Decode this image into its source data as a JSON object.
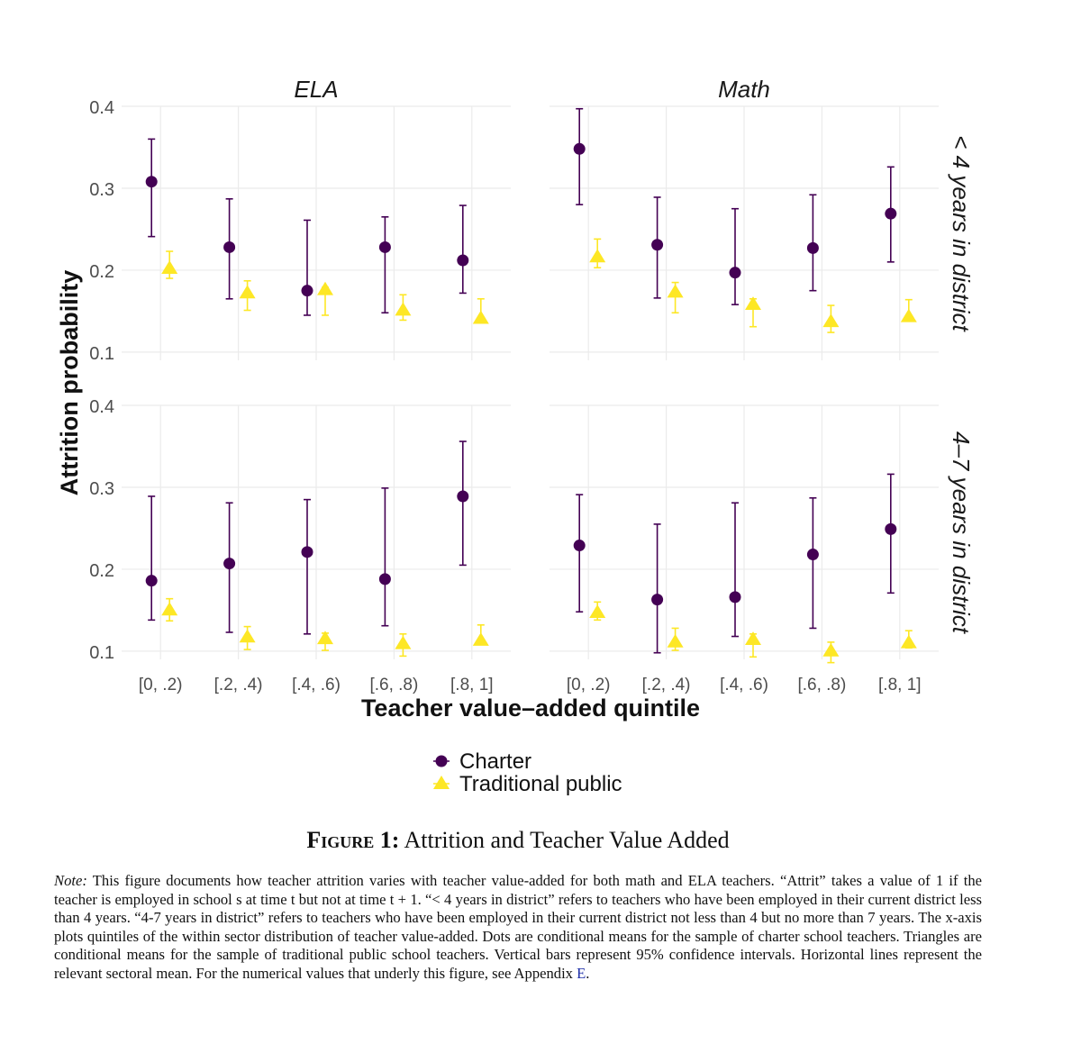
{
  "chart_data": {
    "type": "scatter",
    "facet_cols": [
      "ELA",
      "Math"
    ],
    "facet_rows": [
      "< 4 years in district",
      "4–7 years in district"
    ],
    "categories": [
      "[0, .2)",
      "[.2, .4)",
      "[.4, .6)",
      "[.6, .8)",
      "[.8, 1]"
    ],
    "xlabel": "Teacher value–added quintile",
    "ylabel": "Attrition probability",
    "ylim": [
      0.09,
      0.4
    ],
    "yticks": [
      0.1,
      0.2,
      0.3,
      0.4
    ],
    "grid": true,
    "legend_position": "bottom",
    "series": [
      {
        "name": "Charter",
        "marker": "circle",
        "color": "#440154"
      },
      {
        "name": "Traditional public",
        "marker": "triangle",
        "color": "#FDE725"
      }
    ],
    "panels": [
      {
        "col": "ELA",
        "row": "< 4 years in district",
        "charter": {
          "mean": [
            0.308,
            0.228,
            0.175,
            0.228,
            0.212
          ],
          "lower": [
            0.241,
            0.165,
            0.145,
            0.148,
            0.172
          ],
          "upper": [
            0.36,
            0.287,
            0.261,
            0.265,
            0.279
          ]
        },
        "traditional": {
          "mean": [
            0.202,
            0.172,
            0.176,
            0.151,
            0.141
          ],
          "lower": [
            0.19,
            0.151,
            0.145,
            0.139,
            0.139
          ],
          "upper": [
            0.223,
            0.187,
            0.179,
            0.17,
            0.165
          ]
        }
      },
      {
        "col": "Math",
        "row": "< 4 years in district",
        "charter": {
          "mean": [
            0.348,
            0.231,
            0.197,
            0.227,
            0.269
          ],
          "lower": [
            0.28,
            0.166,
            0.158,
            0.175,
            0.21
          ],
          "upper": [
            0.397,
            0.289,
            0.275,
            0.292,
            0.326
          ]
        },
        "traditional": {
          "mean": [
            0.216,
            0.173,
            0.158,
            0.137,
            0.143
          ],
          "lower": [
            0.203,
            0.148,
            0.131,
            0.124,
            0.14
          ],
          "upper": [
            0.238,
            0.185,
            0.165,
            0.157,
            0.164
          ]
        }
      },
      {
        "col": "ELA",
        "row": "4–7 years in district",
        "charter": {
          "mean": [
            0.186,
            0.207,
            0.221,
            0.188,
            0.289
          ],
          "lower": [
            0.138,
            0.123,
            0.121,
            0.131,
            0.205
          ],
          "upper": [
            0.289,
            0.281,
            0.285,
            0.299,
            0.356
          ]
        },
        "traditional": {
          "mean": [
            0.15,
            0.117,
            0.115,
            0.109,
            0.113
          ],
          "lower": [
            0.137,
            0.102,
            0.101,
            0.094,
            0.109
          ],
          "upper": [
            0.164,
            0.13,
            0.122,
            0.121,
            0.132
          ]
        }
      },
      {
        "col": "Math",
        "row": "4–7 years in district",
        "charter": {
          "mean": [
            0.229,
            0.163,
            0.166,
            0.218,
            0.249
          ],
          "lower": [
            0.148,
            0.098,
            0.118,
            0.128,
            0.171
          ],
          "upper": [
            0.291,
            0.255,
            0.281,
            0.287,
            0.316
          ]
        },
        "traditional": {
          "mean": [
            0.147,
            0.111,
            0.114,
            0.1,
            0.11
          ],
          "lower": [
            0.138,
            0.101,
            0.093,
            0.086,
            0.104
          ],
          "upper": [
            0.16,
            0.128,
            0.121,
            0.111,
            0.125
          ]
        }
      }
    ]
  },
  "caption": {
    "label": "Figure 1:",
    "title": "Attrition and Teacher Value Added"
  },
  "note": {
    "label": "Note:",
    "text": " This figure documents how teacher attrition varies with teacher value-added for both math and ELA teachers. “Attrit” takes a value of 1 if the teacher is employed in school s at time t but not at time t + 1. “< 4 years in district” refers to teachers who have been employed in their current district less than 4 years. “4-7 years in district” refers to teachers who have been employed in their current district not less than 4 but no more than 7 years. The x-axis plots quintiles of the within sector distribution of teacher value-added. Dots are conditional means for the sample of charter school teachers. Triangles are conditional means for the sample of traditional public school teachers. Vertical bars represent 95% confidence intervals. Horizontal lines represent the relevant sectoral mean. For the numerical values that underly this figure, see Appendix ",
    "ref": "E",
    "end": "."
  }
}
